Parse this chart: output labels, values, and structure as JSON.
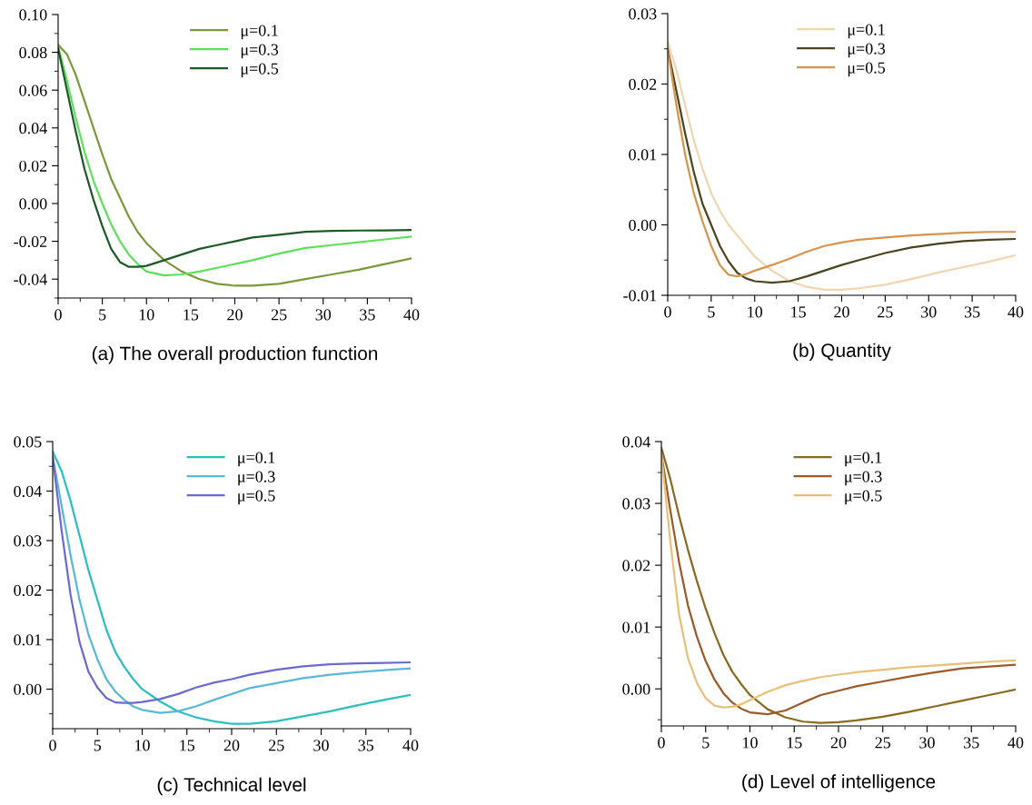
{
  "chart_data": [
    {
      "type": "line",
      "title": "(a) The overall production function",
      "x": [
        0,
        1,
        2,
        3,
        4,
        5,
        6,
        7,
        8,
        9,
        10,
        12,
        14,
        16,
        18,
        20,
        22,
        25,
        28,
        31,
        34,
        37,
        40
      ],
      "xlim": [
        0,
        40
      ],
      "xticks": [
        0,
        5,
        10,
        15,
        20,
        25,
        30,
        35,
        40
      ],
      "ylim": [
        -0.05,
        0.1
      ],
      "yticks": [
        {
          "value": -0.04,
          "label": "-0.04"
        },
        {
          "value": -0.02,
          "label": "-0.02"
        },
        {
          "value": 0,
          "label": "0.00"
        },
        {
          "value": 0.02,
          "label": "0.02"
        },
        {
          "value": 0.04,
          "label": "0.04"
        },
        {
          "value": 0.06,
          "label": "0.06"
        },
        {
          "value": 0.08,
          "label": "0.08"
        },
        {
          "value": 0.1,
          "label": "0.10"
        }
      ],
      "legend": "top",
      "grid": false,
      "series": [
        {
          "name": "μ=0.1",
          "color": "#7a9a3a",
          "values": [
            0.084,
            0.079,
            0.068,
            0.054,
            0.04,
            0.026,
            0.013,
            0.003,
            -0.007,
            -0.015,
            -0.021,
            -0.03,
            -0.036,
            -0.04,
            -0.0425,
            -0.0435,
            -0.0435,
            -0.0425,
            -0.04,
            -0.0375,
            -0.035,
            -0.032,
            -0.029
          ]
        },
        {
          "name": "μ=0.3",
          "color": "#5ee05a",
          "values": [
            0.083,
            0.065,
            0.045,
            0.027,
            0.012,
            0.0,
            -0.011,
            -0.02,
            -0.027,
            -0.032,
            -0.036,
            -0.038,
            -0.0375,
            -0.036,
            -0.034,
            -0.032,
            -0.03,
            -0.0265,
            -0.0235,
            -0.022,
            -0.0205,
            -0.019,
            -0.0175
          ]
        },
        {
          "name": "μ=0.5",
          "color": "#1e5a28",
          "values": [
            0.082,
            0.06,
            0.038,
            0.018,
            0.002,
            -0.012,
            -0.024,
            -0.031,
            -0.0335,
            -0.0335,
            -0.033,
            -0.03,
            -0.027,
            -0.024,
            -0.022,
            -0.02,
            -0.018,
            -0.0165,
            -0.015,
            -0.0145,
            -0.0143,
            -0.0142,
            -0.014
          ]
        }
      ]
    },
    {
      "type": "line",
      "title": "(b) Quantity",
      "x": [
        0,
        1,
        2,
        3,
        4,
        5,
        6,
        7,
        8,
        9,
        10,
        12,
        14,
        16,
        18,
        20,
        22,
        25,
        28,
        31,
        34,
        37,
        40
      ],
      "xlim": [
        0,
        40
      ],
      "xticks": [
        0,
        5,
        10,
        15,
        20,
        25,
        30,
        35,
        40
      ],
      "ylim": [
        -0.01,
        0.03
      ],
      "yticks": [
        {
          "value": -0.01,
          "label": "-0.01"
        },
        {
          "value": 0,
          "label": "0.00"
        },
        {
          "value": 0.01,
          "label": "0.01"
        },
        {
          "value": 0.02,
          "label": "0.02"
        },
        {
          "value": 0.03,
          "label": "0.03"
        }
      ],
      "legend": "top",
      "grid": false,
      "series": [
        {
          "name": "μ=0.1",
          "color": "#f0d5b0",
          "values": [
            0.026,
            0.022,
            0.017,
            0.012,
            0.008,
            0.0045,
            0.002,
            0.0,
            -0.0015,
            -0.003,
            -0.0045,
            -0.0065,
            -0.008,
            -0.0088,
            -0.0092,
            -0.0092,
            -0.009,
            -0.0085,
            -0.0077,
            -0.0068,
            -0.006,
            -0.0052,
            -0.0043
          ]
        },
        {
          "name": "μ=0.3",
          "color": "#4a4420",
          "values": [
            0.025,
            0.019,
            0.013,
            0.0075,
            0.003,
            0.0,
            -0.003,
            -0.0052,
            -0.0068,
            -0.0076,
            -0.008,
            -0.0082,
            -0.008,
            -0.0073,
            -0.0065,
            -0.0057,
            -0.005,
            -0.004,
            -0.0032,
            -0.0027,
            -0.0023,
            -0.0021,
            -0.002
          ]
        },
        {
          "name": "μ=0.5",
          "color": "#d9934a",
          "values": [
            0.025,
            0.017,
            0.01,
            0.0045,
            0.0005,
            -0.003,
            -0.0057,
            -0.0071,
            -0.0073,
            -0.007,
            -0.0065,
            -0.0057,
            -0.0048,
            -0.0038,
            -0.003,
            -0.0025,
            -0.0021,
            -0.0018,
            -0.0015,
            -0.0013,
            -0.0011,
            -0.001,
            -0.001
          ]
        }
      ]
    },
    {
      "type": "line",
      "title": "(c) Technical level",
      "x": [
        0,
        1,
        2,
        3,
        4,
        5,
        6,
        7,
        8,
        9,
        10,
        12,
        14,
        16,
        18,
        20,
        22,
        25,
        28,
        31,
        34,
        37,
        40
      ],
      "xlim": [
        0,
        40
      ],
      "xticks": [
        0,
        5,
        10,
        15,
        20,
        25,
        30,
        35,
        40
      ],
      "ylim": [
        -0.008,
        0.05
      ],
      "yticks": [
        {
          "value": 0,
          "label": "0.00"
        },
        {
          "value": 0.01,
          "label": "0.01"
        },
        {
          "value": 0.02,
          "label": "0.02"
        },
        {
          "value": 0.03,
          "label": "0.03"
        },
        {
          "value": 0.04,
          "label": "0.04"
        },
        {
          "value": 0.05,
          "label": "0.05"
        }
      ],
      "legend": "top",
      "grid": false,
      "series": [
        {
          "name": "μ=0.1",
          "color": "#2bbfbf",
          "values": [
            0.048,
            0.044,
            0.038,
            0.031,
            0.024,
            0.018,
            0.012,
            0.0075,
            0.0045,
            0.002,
            0.0,
            -0.0025,
            -0.0045,
            -0.0057,
            -0.0065,
            -0.007,
            -0.007,
            -0.0065,
            -0.0055,
            -0.0045,
            -0.0033,
            -0.0022,
            -0.0012
          ]
        },
        {
          "name": "μ=0.3",
          "color": "#5ab8d8",
          "values": [
            0.047,
            0.037,
            0.027,
            0.018,
            0.011,
            0.006,
            0.002,
            -0.0005,
            -0.0022,
            -0.0035,
            -0.0042,
            -0.0048,
            -0.0045,
            -0.0035,
            -0.0022,
            -0.001,
            0.0002,
            0.0012,
            0.0022,
            0.0029,
            0.0034,
            0.0038,
            0.0042
          ]
        },
        {
          "name": "μ=0.5",
          "color": "#6a6ad0",
          "values": [
            0.047,
            0.032,
            0.019,
            0.0095,
            0.0035,
            0.0003,
            -0.0018,
            -0.0027,
            -0.0028,
            -0.0028,
            -0.0026,
            -0.002,
            -0.001,
            0.0003,
            0.0013,
            0.002,
            0.0029,
            0.0039,
            0.0046,
            0.005,
            0.0052,
            0.0053,
            0.0054
          ]
        }
      ]
    },
    {
      "type": "line",
      "title": "(d) Level of intelligence",
      "x": [
        0,
        1,
        2,
        3,
        4,
        5,
        6,
        7,
        8,
        9,
        10,
        12,
        14,
        16,
        18,
        20,
        22,
        25,
        28,
        31,
        34,
        37,
        40
      ],
      "xlim": [
        0,
        40
      ],
      "xticks": [
        0,
        5,
        10,
        15,
        20,
        25,
        30,
        35,
        40
      ],
      "ylim": [
        -0.006,
        0.04
      ],
      "yticks": [
        {
          "value": 0,
          "label": "0.00"
        },
        {
          "value": 0.01,
          "label": "0.01"
        },
        {
          "value": 0.02,
          "label": "0.02"
        },
        {
          "value": 0.03,
          "label": "0.03"
        },
        {
          "value": 0.04,
          "label": "0.04"
        }
      ],
      "legend": "top",
      "grid": false,
      "series": [
        {
          "name": "μ=0.1",
          "color": "#8a6a1e",
          "values": [
            0.039,
            0.034,
            0.028,
            0.0225,
            0.0175,
            0.013,
            0.009,
            0.0055,
            0.0028,
            0.0008,
            -0.001,
            -0.0033,
            -0.0046,
            -0.0053,
            -0.0055,
            -0.0054,
            -0.0051,
            -0.0045,
            -0.0037,
            -0.0028,
            -0.0019,
            -0.001,
            -0.0001
          ]
        },
        {
          "name": "μ=0.3",
          "color": "#9a5a2a",
          "values": [
            0.038,
            0.029,
            0.0205,
            0.0135,
            0.0085,
            0.0045,
            0.0015,
            -0.0007,
            -0.0022,
            -0.0032,
            -0.0038,
            -0.0041,
            -0.0035,
            -0.0022,
            -0.001,
            -0.0003,
            0.0004,
            0.0012,
            0.002,
            0.0027,
            0.0033,
            0.0036,
            0.0039
          ]
        },
        {
          "name": "μ=0.5",
          "color": "#e8c07a",
          "values": [
            0.038,
            0.024,
            0.012,
            0.005,
            0.001,
            -0.0015,
            -0.0027,
            -0.003,
            -0.0029,
            -0.0025,
            -0.0018,
            -0.0005,
            0.0006,
            0.0013,
            0.0019,
            0.0023,
            0.0027,
            0.0031,
            0.0035,
            0.0038,
            0.0041,
            0.0044,
            0.0046
          ]
        }
      ]
    }
  ]
}
